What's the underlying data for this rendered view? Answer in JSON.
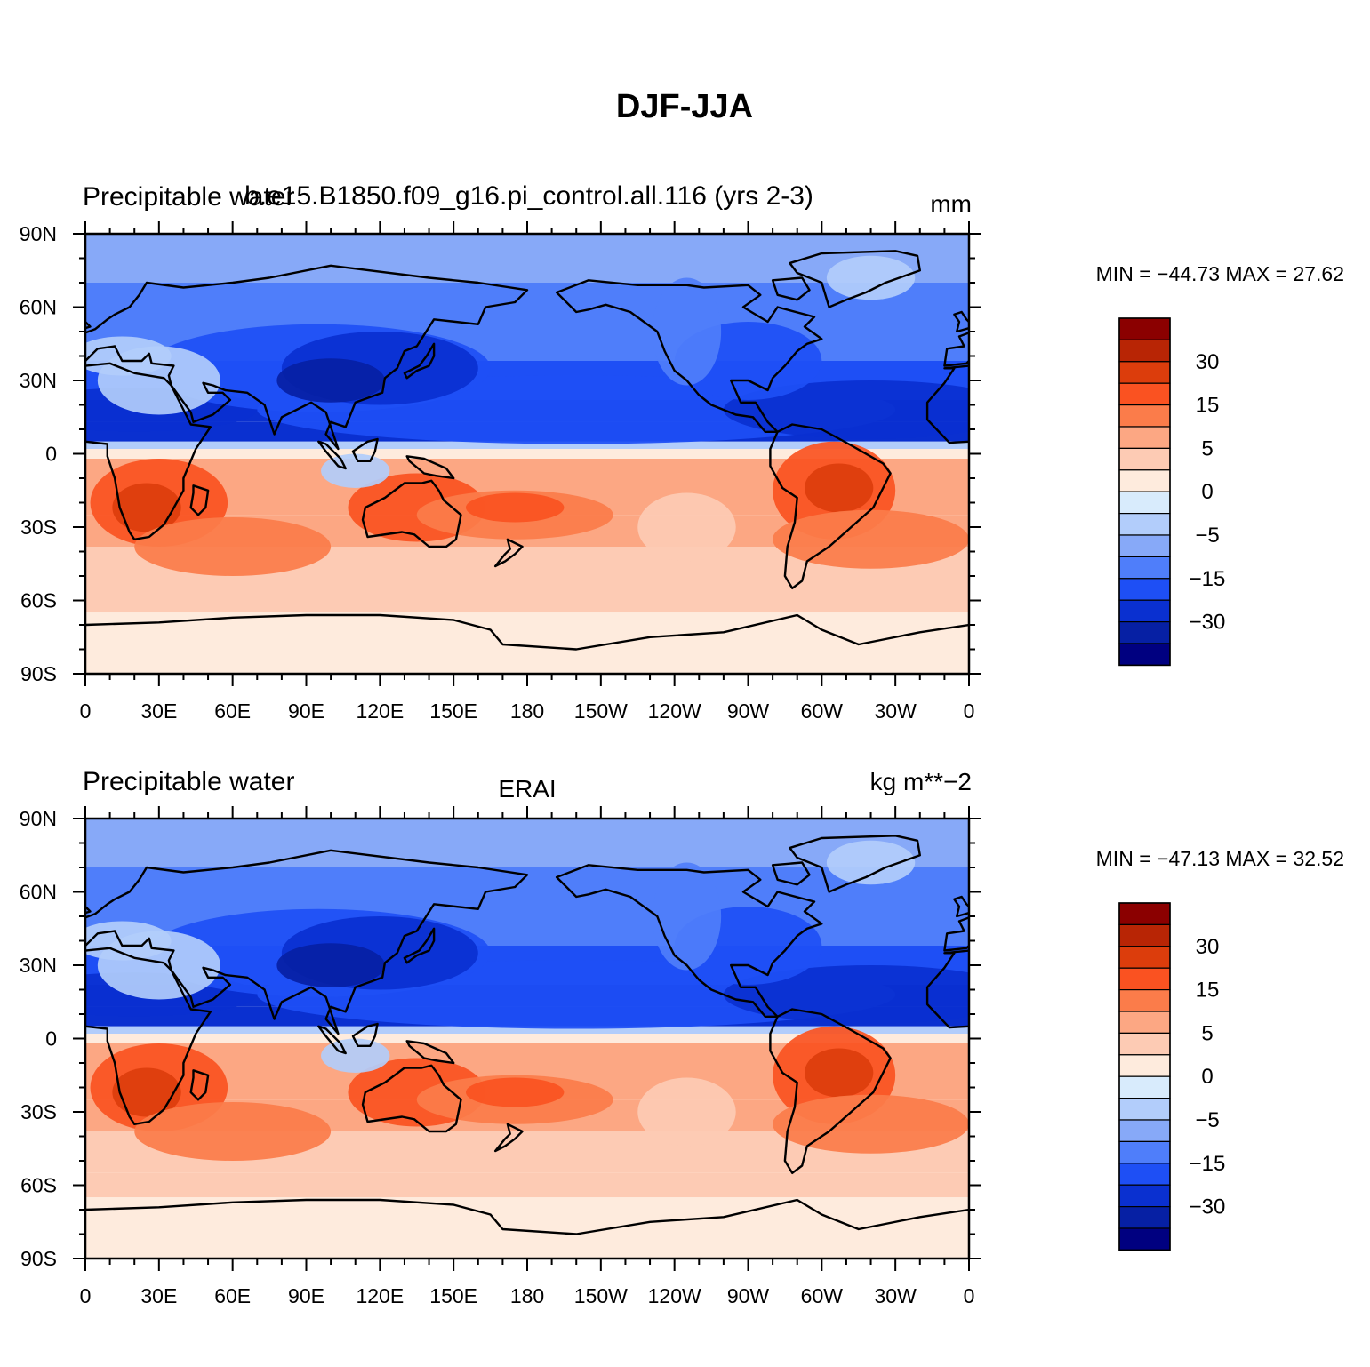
{
  "figure": {
    "title": "DJF-JJA"
  },
  "chart_data": [
    {
      "type": "heatmap",
      "title_left": "Precipitable water",
      "title_center": "b.e15.B1850.f09_g16.pi_control.all.116 (yrs 2-3)",
      "title_right": "mm",
      "min_max_text": "MIN = −44.73  MAX =   27.62",
      "min": -44.73,
      "max": 27.62,
      "xlim": [
        0,
        360
      ],
      "ylim": [
        -90,
        90
      ],
      "x_ticks": [
        "0",
        "30E",
        "60E",
        "90E",
        "120E",
        "150E",
        "180",
        "150W",
        "120W",
        "90W",
        "60W",
        "30W",
        "0"
      ],
      "y_ticks": [
        "90S",
        "60S",
        "30S",
        "0",
        "30N",
        "60N",
        "90N"
      ],
      "colorbar": {
        "labels": [
          "30",
          "15",
          "5",
          "0",
          "−5",
          "−15",
          "−30"
        ],
        "colors": [
          "#8b0000",
          "#b82505",
          "#dc3d0c",
          "#fa5221",
          "#fb7c4a",
          "#fca783",
          "#fdcbb4",
          "#feebdd",
          "#d8ebfc",
          "#b2cdfb",
          "#87a9f8",
          "#4f7efa",
          "#1e4ff5",
          "#0a30d0",
          "#0620a4",
          "#000080"
        ]
      }
    },
    {
      "type": "heatmap",
      "title_left": "Precipitable water",
      "title_center": "ERAI",
      "title_right": "kg m**−2",
      "min_max_text": "MIN = −47.13  MAX =   32.52",
      "min": -47.13,
      "max": 32.52,
      "xlim": [
        0,
        360
      ],
      "ylim": [
        -90,
        90
      ],
      "x_ticks": [
        "0",
        "30E",
        "60E",
        "90E",
        "120E",
        "150E",
        "180",
        "150W",
        "120W",
        "90W",
        "60W",
        "30W",
        "0"
      ],
      "y_ticks": [
        "90S",
        "60S",
        "30S",
        "0",
        "30N",
        "60N",
        "90N"
      ],
      "colorbar": {
        "labels": [
          "30",
          "15",
          "5",
          "0",
          "−5",
          "−15",
          "−30"
        ],
        "colors": [
          "#8b0000",
          "#b82505",
          "#dc3d0c",
          "#fa5221",
          "#fb7c4a",
          "#fca783",
          "#fdcbb4",
          "#feebdd",
          "#d8ebfc",
          "#b2cdfb",
          "#87a9f8",
          "#4f7efa",
          "#1e4ff5",
          "#0a30d0",
          "#0620a4",
          "#000080"
        ]
      }
    }
  ]
}
